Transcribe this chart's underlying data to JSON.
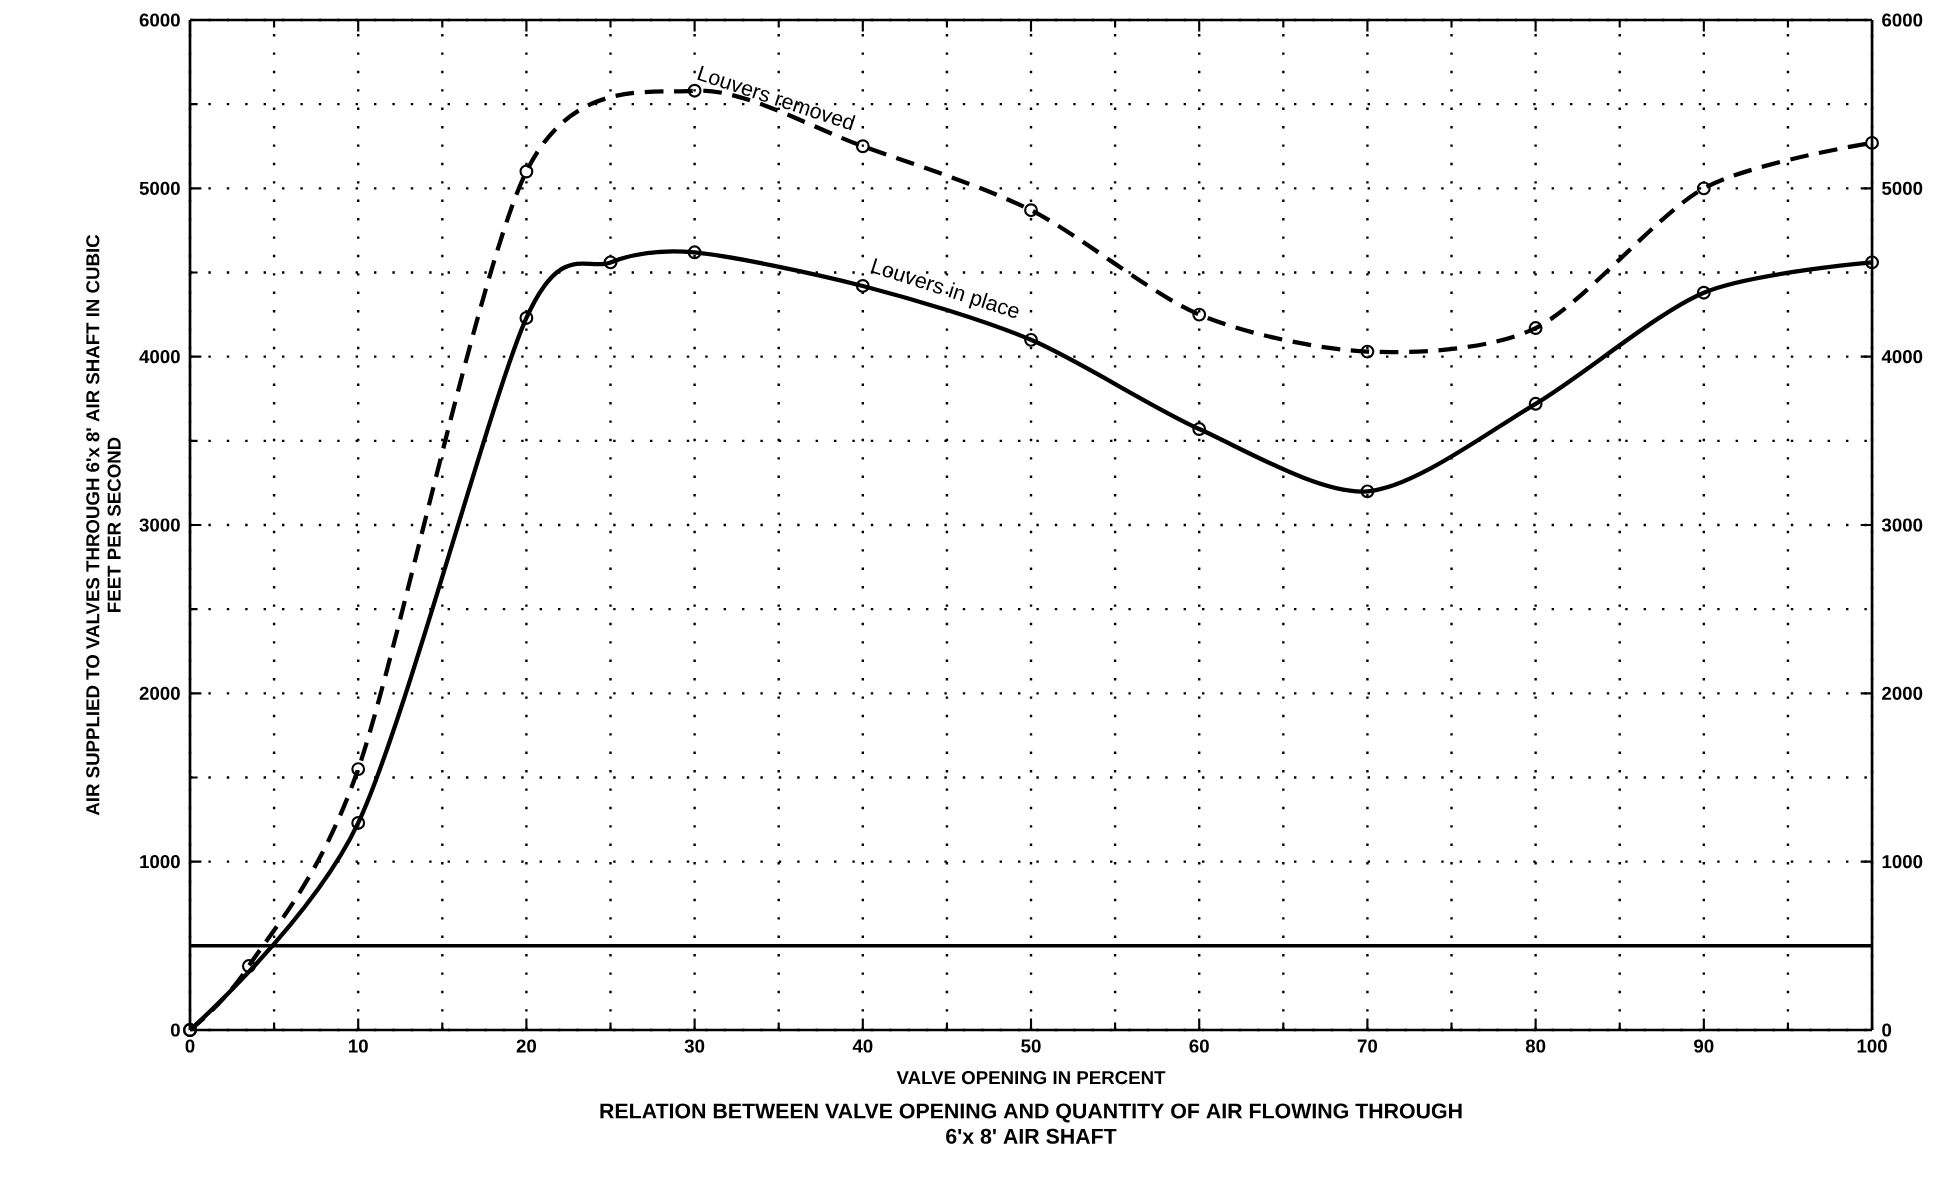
{
  "chart_data": {
    "type": "line",
    "title": "RELATION BETWEEN VALVE OPENING AND QUANTITY OF AIR FLOWING THROUGH 6'x 8' AIR SHAFT",
    "xlabel": "VALVE OPENING IN PERCENT",
    "ylabel": "AIR SUPPLIED TO VALVES THROUGH 6'x 8' AIR SHAFT IN CUBIC FEET PER SECOND",
    "series": [
      {
        "name": "Louvers removed",
        "color": "#000000",
        "line_style": "dashed",
        "x": [
          0,
          3.5,
          10,
          20,
          30,
          40,
          50,
          60,
          70,
          80,
          90,
          100
        ],
        "values": [
          0,
          380,
          1550,
          5100,
          5580,
          5250,
          4870,
          4250,
          4030,
          4170,
          5000,
          5270
        ]
      },
      {
        "name": "Louvers in place",
        "color": "#000000",
        "line_style": "solid",
        "x": [
          0,
          10,
          20,
          25,
          30,
          40,
          50,
          60,
          70,
          80,
          90,
          100
        ],
        "values": [
          0,
          1230,
          4230,
          4560,
          4620,
          4420,
          4100,
          3570,
          3200,
          3720,
          4380,
          4560
        ]
      }
    ],
    "xlim": [
      0,
      100
    ],
    "xticks": [
      0,
      10,
      20,
      30,
      40,
      50,
      60,
      70,
      80,
      90,
      100
    ],
    "ylim": [
      0,
      6000
    ],
    "yticks": [
      0,
      1000,
      2000,
      3000,
      4000,
      5000,
      6000
    ],
    "y2lim": [
      0,
      6000
    ],
    "y2ticks": [
      0,
      1000,
      2000,
      3000,
      4000,
      5000,
      6000
    ],
    "ref_lines": [
      {
        "axis": "y",
        "value": 500,
        "color": "#000000",
        "line_style": "solid"
      }
    ],
    "grid": true,
    "marker": "circle",
    "legend": false
  }
}
